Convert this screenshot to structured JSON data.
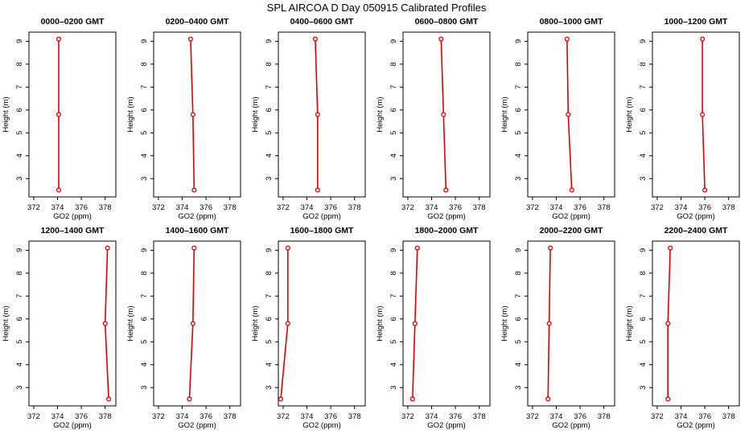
{
  "figure": {
    "title": "SPL AIRCOA D  Day 050915  Calibrated Profiles"
  },
  "colors": {
    "series": "#dd0000",
    "axis": "#000000",
    "background": "#ffffff"
  },
  "chart_data": [
    {
      "type": "line",
      "title": "0000–0200 GMT",
      "xlabel": "GO2 (ppm)",
      "ylabel": "Height (m)",
      "xlim": [
        371.6,
        378.9
      ],
      "ylim": [
        2.2,
        9.4
      ],
      "xticks": [
        372,
        374,
        376,
        378
      ],
      "yticks": [
        3,
        4,
        5,
        6,
        7,
        8,
        9
      ],
      "grid": false,
      "points": [
        {
          "x": 374.1,
          "y": 9.1
        },
        {
          "x": 374.1,
          "y": 5.8
        },
        {
          "x": 374.1,
          "y": 2.5
        }
      ]
    },
    {
      "type": "line",
      "title": "0200–0400 GMT",
      "xlabel": "GO2 (ppm)",
      "ylabel": "Height (m)",
      "xlim": [
        371.6,
        378.9
      ],
      "ylim": [
        2.2,
        9.4
      ],
      "xticks": [
        372,
        374,
        376,
        378
      ],
      "yticks": [
        3,
        4,
        5,
        6,
        7,
        8,
        9
      ],
      "grid": false,
      "points": [
        {
          "x": 374.7,
          "y": 9.1
        },
        {
          "x": 374.9,
          "y": 5.8
        },
        {
          "x": 375.0,
          "y": 2.5
        }
      ]
    },
    {
      "type": "line",
      "title": "0400–0600 GMT",
      "xlabel": "GO2 (ppm)",
      "ylabel": "Height (m)",
      "xlim": [
        371.6,
        378.9
      ],
      "ylim": [
        2.2,
        9.4
      ],
      "xticks": [
        372,
        374,
        376,
        378
      ],
      "yticks": [
        3,
        4,
        5,
        6,
        7,
        8,
        9
      ],
      "grid": false,
      "points": [
        {
          "x": 374.7,
          "y": 9.1
        },
        {
          "x": 374.9,
          "y": 5.8
        },
        {
          "x": 374.9,
          "y": 2.5
        }
      ]
    },
    {
      "type": "line",
      "title": "0600–0800 GMT",
      "xlabel": "GO2 (ppm)",
      "ylabel": "Height (m)",
      "xlim": [
        371.6,
        378.9
      ],
      "ylim": [
        2.2,
        9.4
      ],
      "xticks": [
        372,
        374,
        376,
        378
      ],
      "yticks": [
        3,
        4,
        5,
        6,
        7,
        8,
        9
      ],
      "grid": false,
      "points": [
        {
          "x": 374.8,
          "y": 9.1
        },
        {
          "x": 375.0,
          "y": 5.8
        },
        {
          "x": 375.2,
          "y": 2.5
        }
      ]
    },
    {
      "type": "line",
      "title": "0800–1000 GMT",
      "xlabel": "GO2 (ppm)",
      "ylabel": "Height (m)",
      "xlim": [
        371.6,
        378.9
      ],
      "ylim": [
        2.2,
        9.4
      ],
      "xticks": [
        372,
        374,
        376,
        378
      ],
      "yticks": [
        3,
        4,
        5,
        6,
        7,
        8,
        9
      ],
      "grid": false,
      "points": [
        {
          "x": 374.9,
          "y": 9.1
        },
        {
          "x": 375.0,
          "y": 5.8
        },
        {
          "x": 375.3,
          "y": 2.5
        }
      ]
    },
    {
      "type": "line",
      "title": "1000–1200 GMT",
      "xlabel": "GO2 (ppm)",
      "ylabel": "Height (m)",
      "xlim": [
        371.6,
        378.9
      ],
      "ylim": [
        2.2,
        9.4
      ],
      "xticks": [
        372,
        374,
        376,
        378
      ],
      "yticks": [
        3,
        4,
        5,
        6,
        7,
        8,
        9
      ],
      "grid": false,
      "points": [
        {
          "x": 375.8,
          "y": 9.1
        },
        {
          "x": 375.8,
          "y": 5.8
        },
        {
          "x": 376.0,
          "y": 2.5
        }
      ]
    },
    {
      "type": "line",
      "title": "1200–1400 GMT",
      "xlabel": "GO2 (ppm)",
      "ylabel": "Height (m)",
      "xlim": [
        371.6,
        378.9
      ],
      "ylim": [
        2.2,
        9.4
      ],
      "xticks": [
        372,
        374,
        376,
        378
      ],
      "yticks": [
        3,
        4,
        5,
        6,
        7,
        8,
        9
      ],
      "grid": false,
      "points": [
        {
          "x": 378.2,
          "y": 9.1
        },
        {
          "x": 378.0,
          "y": 5.8
        },
        {
          "x": 378.3,
          "y": 2.5
        }
      ]
    },
    {
      "type": "line",
      "title": "1400–1600 GMT",
      "xlabel": "GO2 (ppm)",
      "ylabel": "Height (m)",
      "xlim": [
        371.6,
        378.9
      ],
      "ylim": [
        2.2,
        9.4
      ],
      "xticks": [
        372,
        374,
        376,
        378
      ],
      "yticks": [
        3,
        4,
        5,
        6,
        7,
        8,
        9
      ],
      "grid": false,
      "points": [
        {
          "x": 375.0,
          "y": 9.1
        },
        {
          "x": 374.9,
          "y": 5.8
        },
        {
          "x": 374.6,
          "y": 2.5
        }
      ]
    },
    {
      "type": "line",
      "title": "1600–1800 GMT",
      "xlabel": "GO2 (ppm)",
      "ylabel": "Height (m)",
      "xlim": [
        371.6,
        378.9
      ],
      "ylim": [
        2.2,
        9.4
      ],
      "xticks": [
        372,
        374,
        376,
        378
      ],
      "yticks": [
        3,
        4,
        5,
        6,
        7,
        8,
        9
      ],
      "grid": false,
      "points": [
        {
          "x": 372.4,
          "y": 9.1
        },
        {
          "x": 372.4,
          "y": 5.8
        },
        {
          "x": 371.8,
          "y": 2.5
        }
      ]
    },
    {
      "type": "line",
      "title": "1800–2000 GMT",
      "xlabel": "GO2 (ppm)",
      "ylabel": "Height (m)",
      "xlim": [
        371.6,
        378.9
      ],
      "ylim": [
        2.2,
        9.4
      ],
      "xticks": [
        372,
        374,
        376,
        378
      ],
      "yticks": [
        3,
        4,
        5,
        6,
        7,
        8,
        9
      ],
      "grid": false,
      "points": [
        {
          "x": 372.8,
          "y": 9.1
        },
        {
          "x": 372.6,
          "y": 5.8
        },
        {
          "x": 372.4,
          "y": 2.5
        }
      ]
    },
    {
      "type": "line",
      "title": "2000–2200 GMT",
      "xlabel": "GO2 (ppm)",
      "ylabel": "Height (m)",
      "xlim": [
        371.6,
        378.9
      ],
      "ylim": [
        2.2,
        9.4
      ],
      "xticks": [
        372,
        374,
        376,
        378
      ],
      "yticks": [
        3,
        4,
        5,
        6,
        7,
        8,
        9
      ],
      "grid": false,
      "points": [
        {
          "x": 373.5,
          "y": 9.1
        },
        {
          "x": 373.4,
          "y": 5.8
        },
        {
          "x": 373.3,
          "y": 2.5
        }
      ]
    },
    {
      "type": "line",
      "title": "2200–2400 GMT",
      "xlabel": "GO2 (ppm)",
      "ylabel": "Height (m)",
      "xlim": [
        371.6,
        378.9
      ],
      "ylim": [
        2.2,
        9.4
      ],
      "xticks": [
        372,
        374,
        376,
        378
      ],
      "yticks": [
        3,
        4,
        5,
        6,
        7,
        8,
        9
      ],
      "grid": false,
      "points": [
        {
          "x": 373.1,
          "y": 9.1
        },
        {
          "x": 372.9,
          "y": 5.8
        },
        {
          "x": 372.9,
          "y": 2.5
        }
      ]
    }
  ]
}
